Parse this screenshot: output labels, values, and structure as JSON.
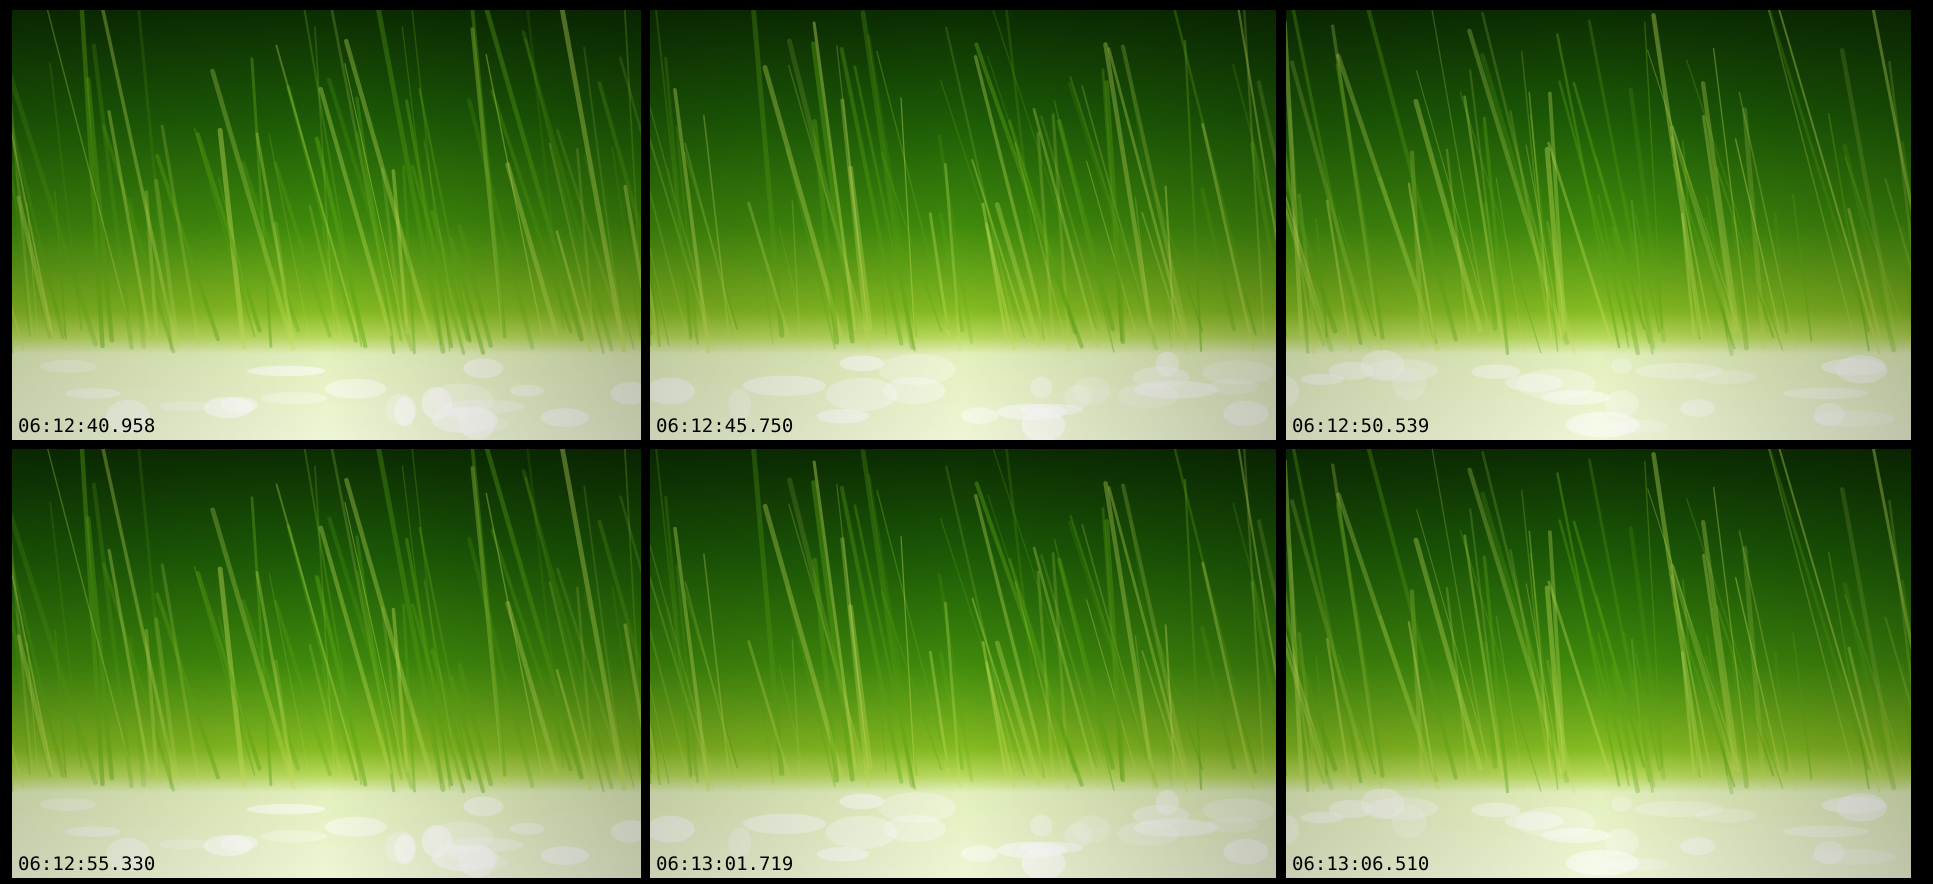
{
  "panels": [
    {
      "timestamp": "06:12:40.958"
    },
    {
      "timestamp": "06:12:45.750"
    },
    {
      "timestamp": "06:12:50.539"
    },
    {
      "timestamp": "06:12:55.330"
    },
    {
      "timestamp": "06:13:01.719"
    },
    {
      "timestamp": "06:13:06.510"
    }
  ]
}
